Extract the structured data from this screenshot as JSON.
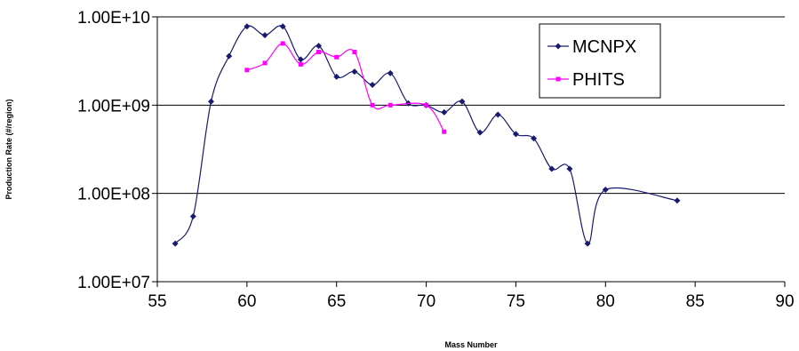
{
  "chart_data": {
    "type": "line",
    "title": "",
    "xlabel": "Mass Number",
    "ylabel": "Production Rate (#/region)",
    "xlim": [
      55,
      90
    ],
    "ylim": [
      10000000,
      10000000000
    ],
    "y_scale": "log",
    "x_ticks": [
      55,
      60,
      65,
      70,
      75,
      80,
      85,
      90
    ],
    "x_tick_labels": [
      "55",
      "60",
      "65",
      "70",
      "75",
      "80",
      "85",
      "90"
    ],
    "y_ticks": [
      10000000,
      100000000,
      1000000000,
      10000000000
    ],
    "y_tick_labels": [
      "1.00E+07",
      "1.00E+08",
      "1.00E+09",
      "1.00E+10"
    ],
    "grid": "horizontal",
    "legend_position": "top-right",
    "series": [
      {
        "name": "MCNPX",
        "color": "#1a1a6e",
        "marker": "diamond",
        "smooth": true,
        "x": [
          56,
          57,
          58,
          59,
          60,
          61,
          62,
          63,
          64,
          65,
          66,
          67,
          68,
          69,
          70,
          71,
          72,
          73,
          74,
          75,
          76,
          77,
          78,
          79,
          80,
          84
        ],
        "y": [
          27000000,
          55000000,
          1100000000,
          3600000000,
          7800000000,
          6200000000,
          7800000000,
          3300000000,
          4700000000,
          2100000000,
          2400000000,
          1700000000,
          2300000000,
          1050000000,
          1000000000,
          830000000,
          1100000000,
          490000000,
          780000000,
          470000000,
          420000000,
          190000000,
          190000000,
          27000000,
          110000000,
          83000000
        ]
      },
      {
        "name": "PHITS",
        "color": "#ff00ff",
        "marker": "square",
        "smooth": true,
        "x": [
          60,
          61,
          62,
          63,
          64,
          65,
          66,
          67,
          68,
          70,
          71
        ],
        "y": [
          2500000000,
          3000000000,
          5000000000,
          2900000000,
          4000000000,
          3500000000,
          4000000000,
          1000000000,
          1000000000,
          1000000000,
          500000000
        ]
      }
    ]
  }
}
